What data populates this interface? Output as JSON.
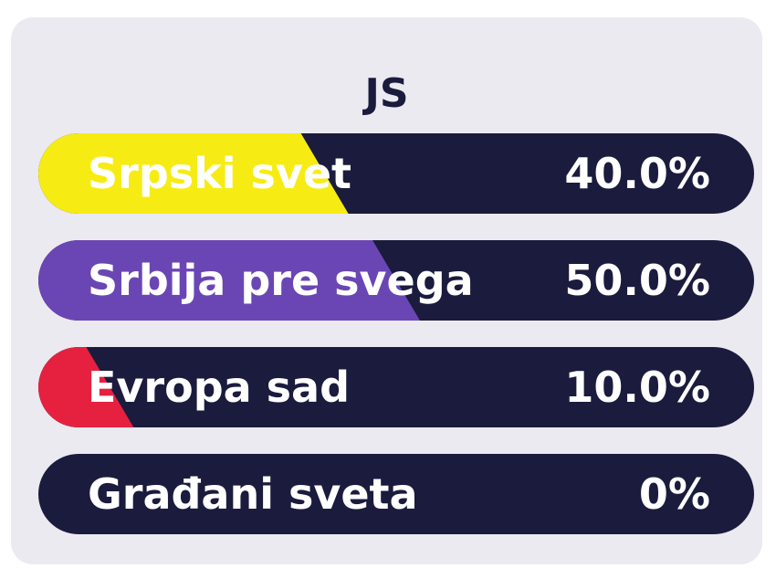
{
  "chart_data": {
    "type": "bar",
    "title": "JS",
    "categories": [
      "Srpski svet",
      "Srbija pre svega",
      "Evropa sad",
      "Građani sveta"
    ],
    "values": [
      40.0,
      50.0,
      10.0,
      0
    ],
    "value_labels": [
      "40.0%",
      "50.0%",
      "10.0%",
      "0%"
    ],
    "colors": [
      "#f6ec14",
      "#6a46b4",
      "#e5213f",
      "#1a1b3d"
    ],
    "background_color": "#1a1b3d",
    "xlim": [
      0,
      100
    ]
  }
}
